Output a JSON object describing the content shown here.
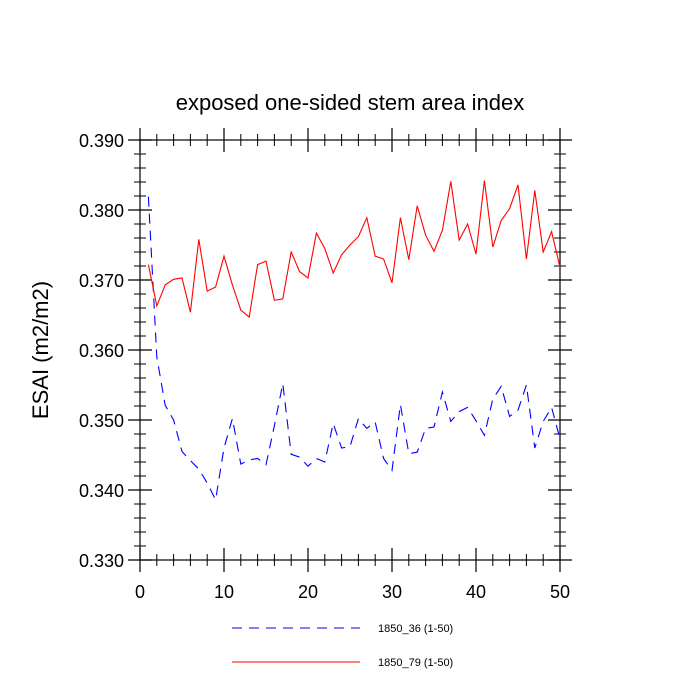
{
  "chart_data": {
    "type": "line",
    "title": "exposed one-sided stem area index",
    "xlabel": "",
    "ylabel": "ESAI  (m2/m2)",
    "xlim": [
      0,
      50
    ],
    "ylim": [
      0.33,
      0.39
    ],
    "xticks": [
      0,
      10,
      20,
      30,
      40,
      50
    ],
    "xtick_labels": [
      "0",
      "10",
      "20",
      "30",
      "40",
      "50"
    ],
    "yticks": [
      0.33,
      0.34,
      0.35,
      0.36,
      0.37,
      0.38,
      0.39
    ],
    "ytick_labels": [
      "0.330",
      "0.340",
      "0.350",
      "0.360",
      "0.370",
      "0.380",
      "0.390"
    ],
    "grid": false,
    "legend_position": "bottom-center",
    "x": [
      1,
      2,
      3,
      4,
      5,
      6,
      7,
      8,
      9,
      10,
      11,
      12,
      13,
      14,
      15,
      16,
      17,
      18,
      19,
      20,
      21,
      22,
      23,
      24,
      25,
      26,
      27,
      28,
      29,
      30,
      31,
      32,
      33,
      34,
      35,
      36,
      37,
      38,
      39,
      40,
      41,
      42,
      43,
      44,
      45,
      46,
      47,
      48,
      49,
      50
    ],
    "series": [
      {
        "name": "1850_36 (1-50)",
        "color": "#0000ff",
        "dash": "dashed",
        "values": [
          0.3819,
          0.359,
          0.3521,
          0.35,
          0.3455,
          0.3442,
          0.343,
          0.341,
          0.3386,
          0.346,
          0.3502,
          0.3437,
          0.3443,
          0.3445,
          0.3436,
          0.3492,
          0.3552,
          0.3451,
          0.3447,
          0.3434,
          0.3445,
          0.344,
          0.3495,
          0.346,
          0.3462,
          0.3502,
          0.3488,
          0.3497,
          0.3445,
          0.3428,
          0.3522,
          0.3452,
          0.3454,
          0.3488,
          0.349,
          0.354,
          0.3498,
          0.3512,
          0.3518,
          0.3499,
          0.3478,
          0.353,
          0.3548,
          0.3505,
          0.3514,
          0.355,
          0.346,
          0.3498,
          0.3518,
          0.3473
        ]
      },
      {
        "name": "1850_79 (1-50)",
        "color": "#ff0000",
        "dash": "solid",
        "values": [
          0.3722,
          0.3663,
          0.3693,
          0.3701,
          0.3703,
          0.3654,
          0.3758,
          0.3684,
          0.369,
          0.3734,
          0.3693,
          0.3657,
          0.3647,
          0.3722,
          0.3727,
          0.3671,
          0.3673,
          0.374,
          0.3712,
          0.3703,
          0.3767,
          0.3745,
          0.371,
          0.3736,
          0.375,
          0.3762,
          0.3789,
          0.3734,
          0.373,
          0.3696,
          0.3789,
          0.3729,
          0.3806,
          0.3764,
          0.3741,
          0.3771,
          0.3841,
          0.3757,
          0.378,
          0.3737,
          0.3842,
          0.3747,
          0.3785,
          0.3802,
          0.3836,
          0.373,
          0.3828,
          0.374,
          0.3769,
          0.3718
        ]
      }
    ]
  }
}
